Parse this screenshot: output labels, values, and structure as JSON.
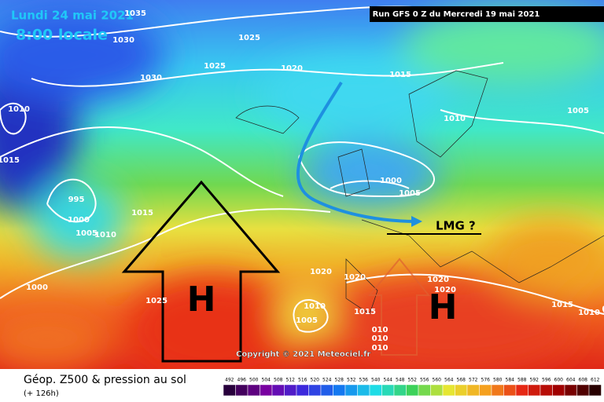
{
  "header": {
    "date": "Lundi 24 mai 2021",
    "time": "8:00 locale",
    "run": "Run GFS 0 Z du Mercredi 19 mai 2021"
  },
  "isobars": [
    "1035",
    "1030",
    "1025",
    "1025",
    "1030",
    "1020",
    "1015",
    "1010",
    "1015",
    "1010",
    "1005",
    "995",
    "1000",
    "1005",
    "1010",
    "1015",
    "1000",
    "1005",
    "1000",
    "1020",
    "1020",
    "1020",
    "1020",
    "1025",
    "1010",
    "1005",
    "1015",
    "1010",
    "010",
    "010",
    "010",
    "1015"
  ],
  "annotations": {
    "high_west": "H",
    "high_east": "H",
    "lmg": "LMG ?",
    "copyright": "Copyright © 2021 Meteociel.fr"
  },
  "legend": {
    "title": "Géop. Z500 & pression au sol",
    "lead": "(+ 126h)",
    "scale": [
      492,
      496,
      500,
      504,
      508,
      512,
      516,
      520,
      524,
      528,
      532,
      536,
      540,
      544,
      548,
      552,
      556,
      560,
      564,
      568,
      572,
      576,
      580,
      584,
      588,
      592,
      596,
      600,
      604,
      608,
      612
    ]
  }
}
